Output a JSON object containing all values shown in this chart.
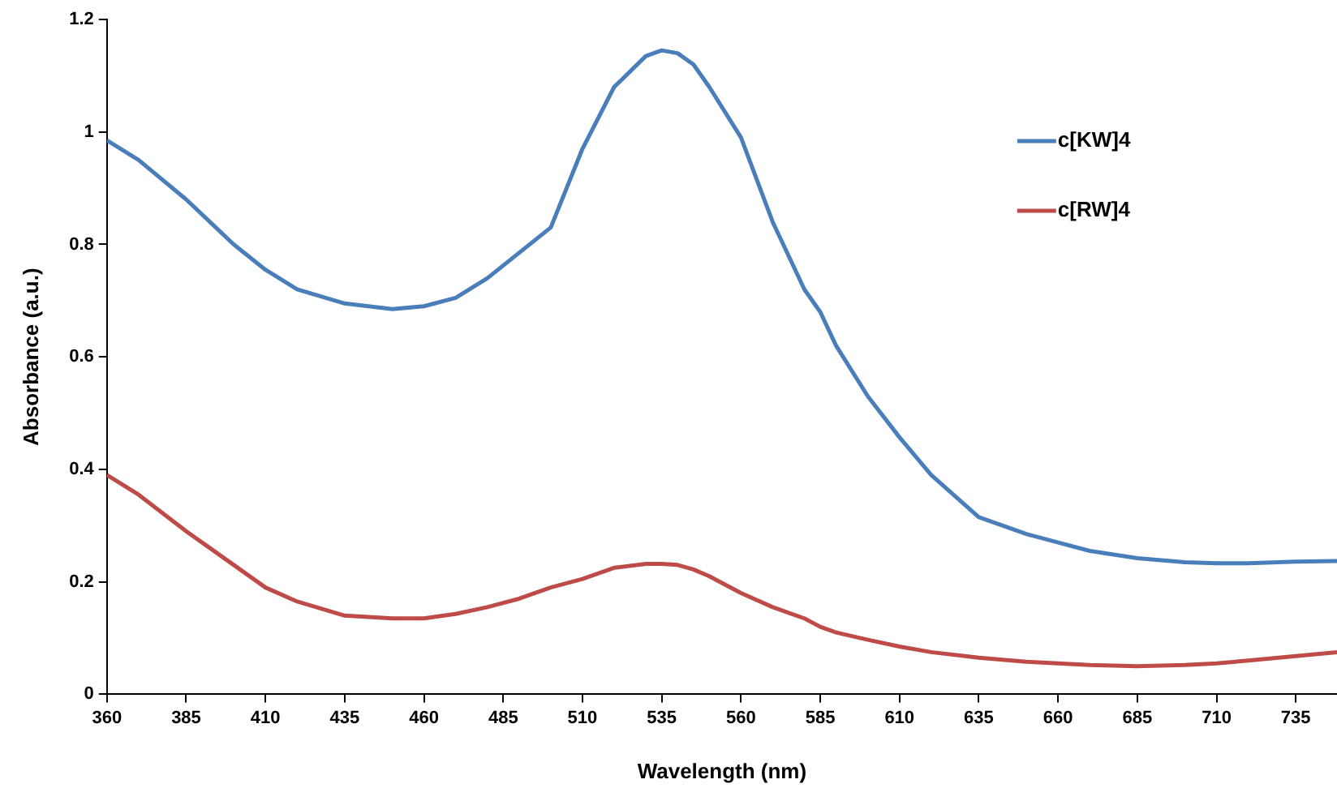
{
  "chart_data": {
    "type": "line",
    "xlabel": "Wavelength (nm)",
    "ylabel": "Absorbance (a.u.)",
    "xlim": [
      360,
      748
    ],
    "xticks": [
      360,
      385,
      410,
      435,
      460,
      485,
      510,
      535,
      560,
      585,
      610,
      635,
      660,
      685,
      710,
      735
    ],
    "ylim": [
      0,
      1.2
    ],
    "yticks": [
      0,
      {
        "value": 0.2,
        "label": "0.2"
      },
      {
        "value": 0.4,
        "label": "0.4"
      },
      {
        "value": 0.6,
        "label": "0.6"
      },
      {
        "value": 0.8,
        "label": "0.8"
      },
      1,
      {
        "value": 1.2,
        "label": "1.2"
      }
    ],
    "grid": false,
    "legend": "top right",
    "marker": "none",
    "line_style": "solid",
    "x": [
      360,
      370,
      385,
      400,
      410,
      420,
      435,
      450,
      460,
      470,
      480,
      490,
      500,
      510,
      520,
      530,
      535,
      540,
      545,
      550,
      560,
      570,
      580,
      585,
      590,
      600,
      610,
      620,
      635,
      650,
      660,
      670,
      685,
      700,
      710,
      720,
      735,
      748
    ],
    "series": [
      {
        "name": "c[KW]4",
        "color": "#4a7ebb",
        "values": [
          0.985,
          0.95,
          0.88,
          0.8,
          0.755,
          0.72,
          0.695,
          0.685,
          0.69,
          0.705,
          0.74,
          0.785,
          0.83,
          0.97,
          1.08,
          1.135,
          1.145,
          1.14,
          1.12,
          1.08,
          0.99,
          0.84,
          0.72,
          0.68,
          0.62,
          0.53,
          0.457,
          0.39,
          0.315,
          0.285,
          0.27,
          0.255,
          0.242,
          0.235,
          0.233,
          0.233,
          0.236,
          0.237
        ]
      },
      {
        "name": "c[RW]4",
        "color": "#be4b48",
        "values": [
          0.39,
          0.355,
          0.29,
          0.23,
          0.19,
          0.165,
          0.14,
          0.135,
          0.135,
          0.143,
          0.155,
          0.17,
          0.19,
          0.205,
          0.225,
          0.232,
          0.232,
          0.23,
          0.222,
          0.21,
          0.18,
          0.155,
          0.135,
          0.12,
          0.11,
          0.097,
          0.085,
          0.075,
          0.065,
          0.058,
          0.055,
          0.052,
          0.05,
          0.052,
          0.055,
          0.06,
          0.068,
          0.075
        ]
      }
    ]
  }
}
